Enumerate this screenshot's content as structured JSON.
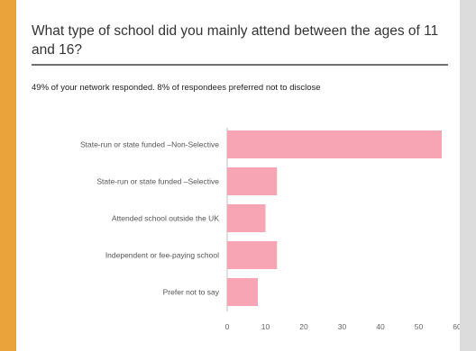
{
  "question": "What type of school did you mainly attend between the ages of 11 and 16?",
  "response_note": "49% of your network responded. 8% of respondees preferred not to disclose",
  "colors": {
    "bar": "#f7a5b5",
    "page_accent": "#e9a33a",
    "axis": "#bdbdbd"
  },
  "chart_data": {
    "type": "bar",
    "orientation": "horizontal",
    "title": "",
    "xlabel": "",
    "ylabel": "",
    "categories": [
      "State-run or state funded –Non-Selective",
      "State-run or state funded –Selective",
      "Attended school outside the UK",
      "Independent or fee-paying school",
      "Prefer not to say"
    ],
    "values": [
      56,
      13,
      10,
      13,
      8
    ],
    "xlim": [
      0,
      60
    ],
    "xticks": [
      0,
      10,
      20,
      30,
      40,
      50,
      60
    ],
    "grid": false,
    "legend": "none"
  }
}
